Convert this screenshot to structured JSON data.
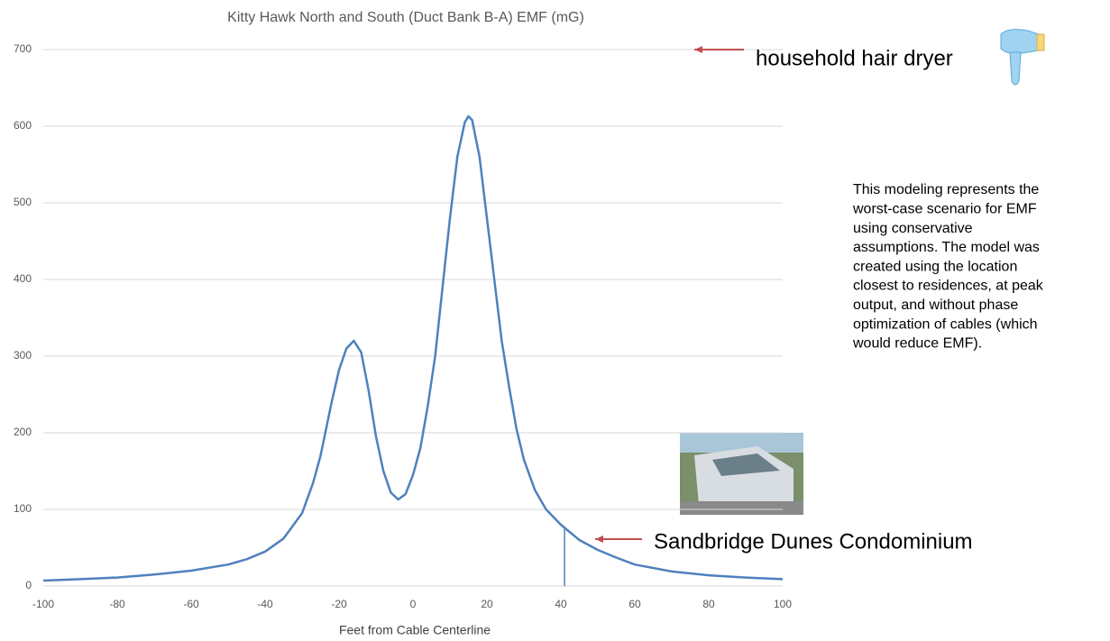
{
  "chart_data": {
    "type": "line",
    "title": "Kitty Hawk North and South (Duct Bank B-A) EMF (mG)",
    "x_label": "Feet from Cable Centerline",
    "x": [
      -100,
      -90,
      -80,
      -70,
      -60,
      -50,
      -45,
      -40,
      -35,
      -30,
      -27,
      -25,
      -22,
      -20,
      -18,
      -16,
      -14,
      -12,
      -10,
      -8,
      -6,
      -4,
      -2,
      0,
      2,
      4,
      6,
      8,
      10,
      12,
      14,
      15,
      16,
      18,
      20,
      22,
      24,
      26,
      28,
      30,
      33,
      36,
      40,
      45,
      50,
      55,
      60,
      70,
      80,
      90,
      100
    ],
    "values": [
      7,
      9,
      11,
      15,
      20,
      28,
      35,
      45,
      62,
      95,
      135,
      170,
      240,
      282,
      310,
      320,
      305,
      255,
      195,
      150,
      122,
      113,
      120,
      145,
      180,
      235,
      300,
      390,
      480,
      560,
      605,
      613,
      608,
      560,
      480,
      400,
      320,
      260,
      205,
      165,
      125,
      100,
      80,
      60,
      47,
      37,
      28,
      19,
      14,
      11,
      9
    ],
    "color": "#4f81bd",
    "xlim": [
      -100,
      100
    ],
    "xticks": [
      -100,
      -80,
      -60,
      -40,
      -20,
      0,
      20,
      40,
      60,
      80,
      100
    ],
    "ylim": [
      0,
      700
    ],
    "yticks": [
      0,
      100,
      200,
      300,
      400,
      500,
      600,
      700
    ],
    "grid": true,
    "marker": {
      "x": 41,
      "y": 75
    },
    "annotations": [
      {
        "text": "household hair dryer",
        "y": 700
      },
      {
        "text": "Sandbridge Dunes Condominium"
      }
    ],
    "note_lines": [
      "This modeling represents the",
      "worst-case scenario for EMF",
      "using conservative",
      "assumptions. The model was",
      "created using the location",
      "closest to residences, at peak",
      "output, and without phase",
      "optimization of cables (which",
      "would reduce EMF)."
    ]
  }
}
